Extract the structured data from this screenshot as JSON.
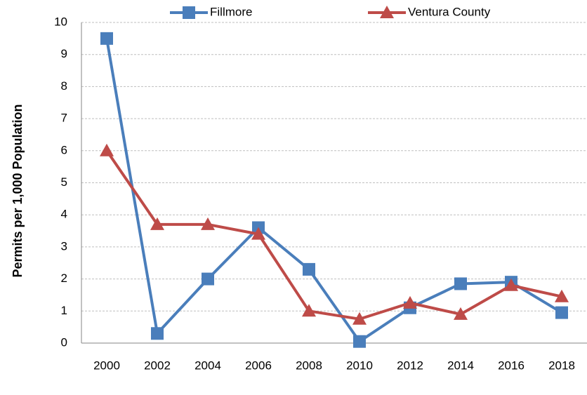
{
  "chart_data": {
    "type": "line",
    "y_label": "Permits per 1,000 Population",
    "categories": [
      "2000",
      "2002",
      "2004",
      "2006",
      "2008",
      "2010",
      "2012",
      "2014",
      "2016",
      "2018"
    ],
    "series": [
      {
        "name": "Fillmore",
        "color": "#4a7ebb",
        "marker": "square",
        "values": [
          9.5,
          0.3,
          2.0,
          3.6,
          2.3,
          0.05,
          1.1,
          1.85,
          1.9,
          0.95
        ]
      },
      {
        "name": "Ventura County",
        "color": "#be4b48",
        "marker": "triangle",
        "values": [
          6.0,
          3.7,
          3.7,
          3.4,
          1.0,
          0.75,
          1.25,
          0.9,
          1.8,
          1.45
        ]
      }
    ],
    "ylim": [
      0,
      10
    ],
    "yticks": [
      0,
      1,
      2,
      3,
      4,
      5,
      6,
      7,
      8,
      9,
      10
    ],
    "grid": true,
    "legend": "top"
  }
}
